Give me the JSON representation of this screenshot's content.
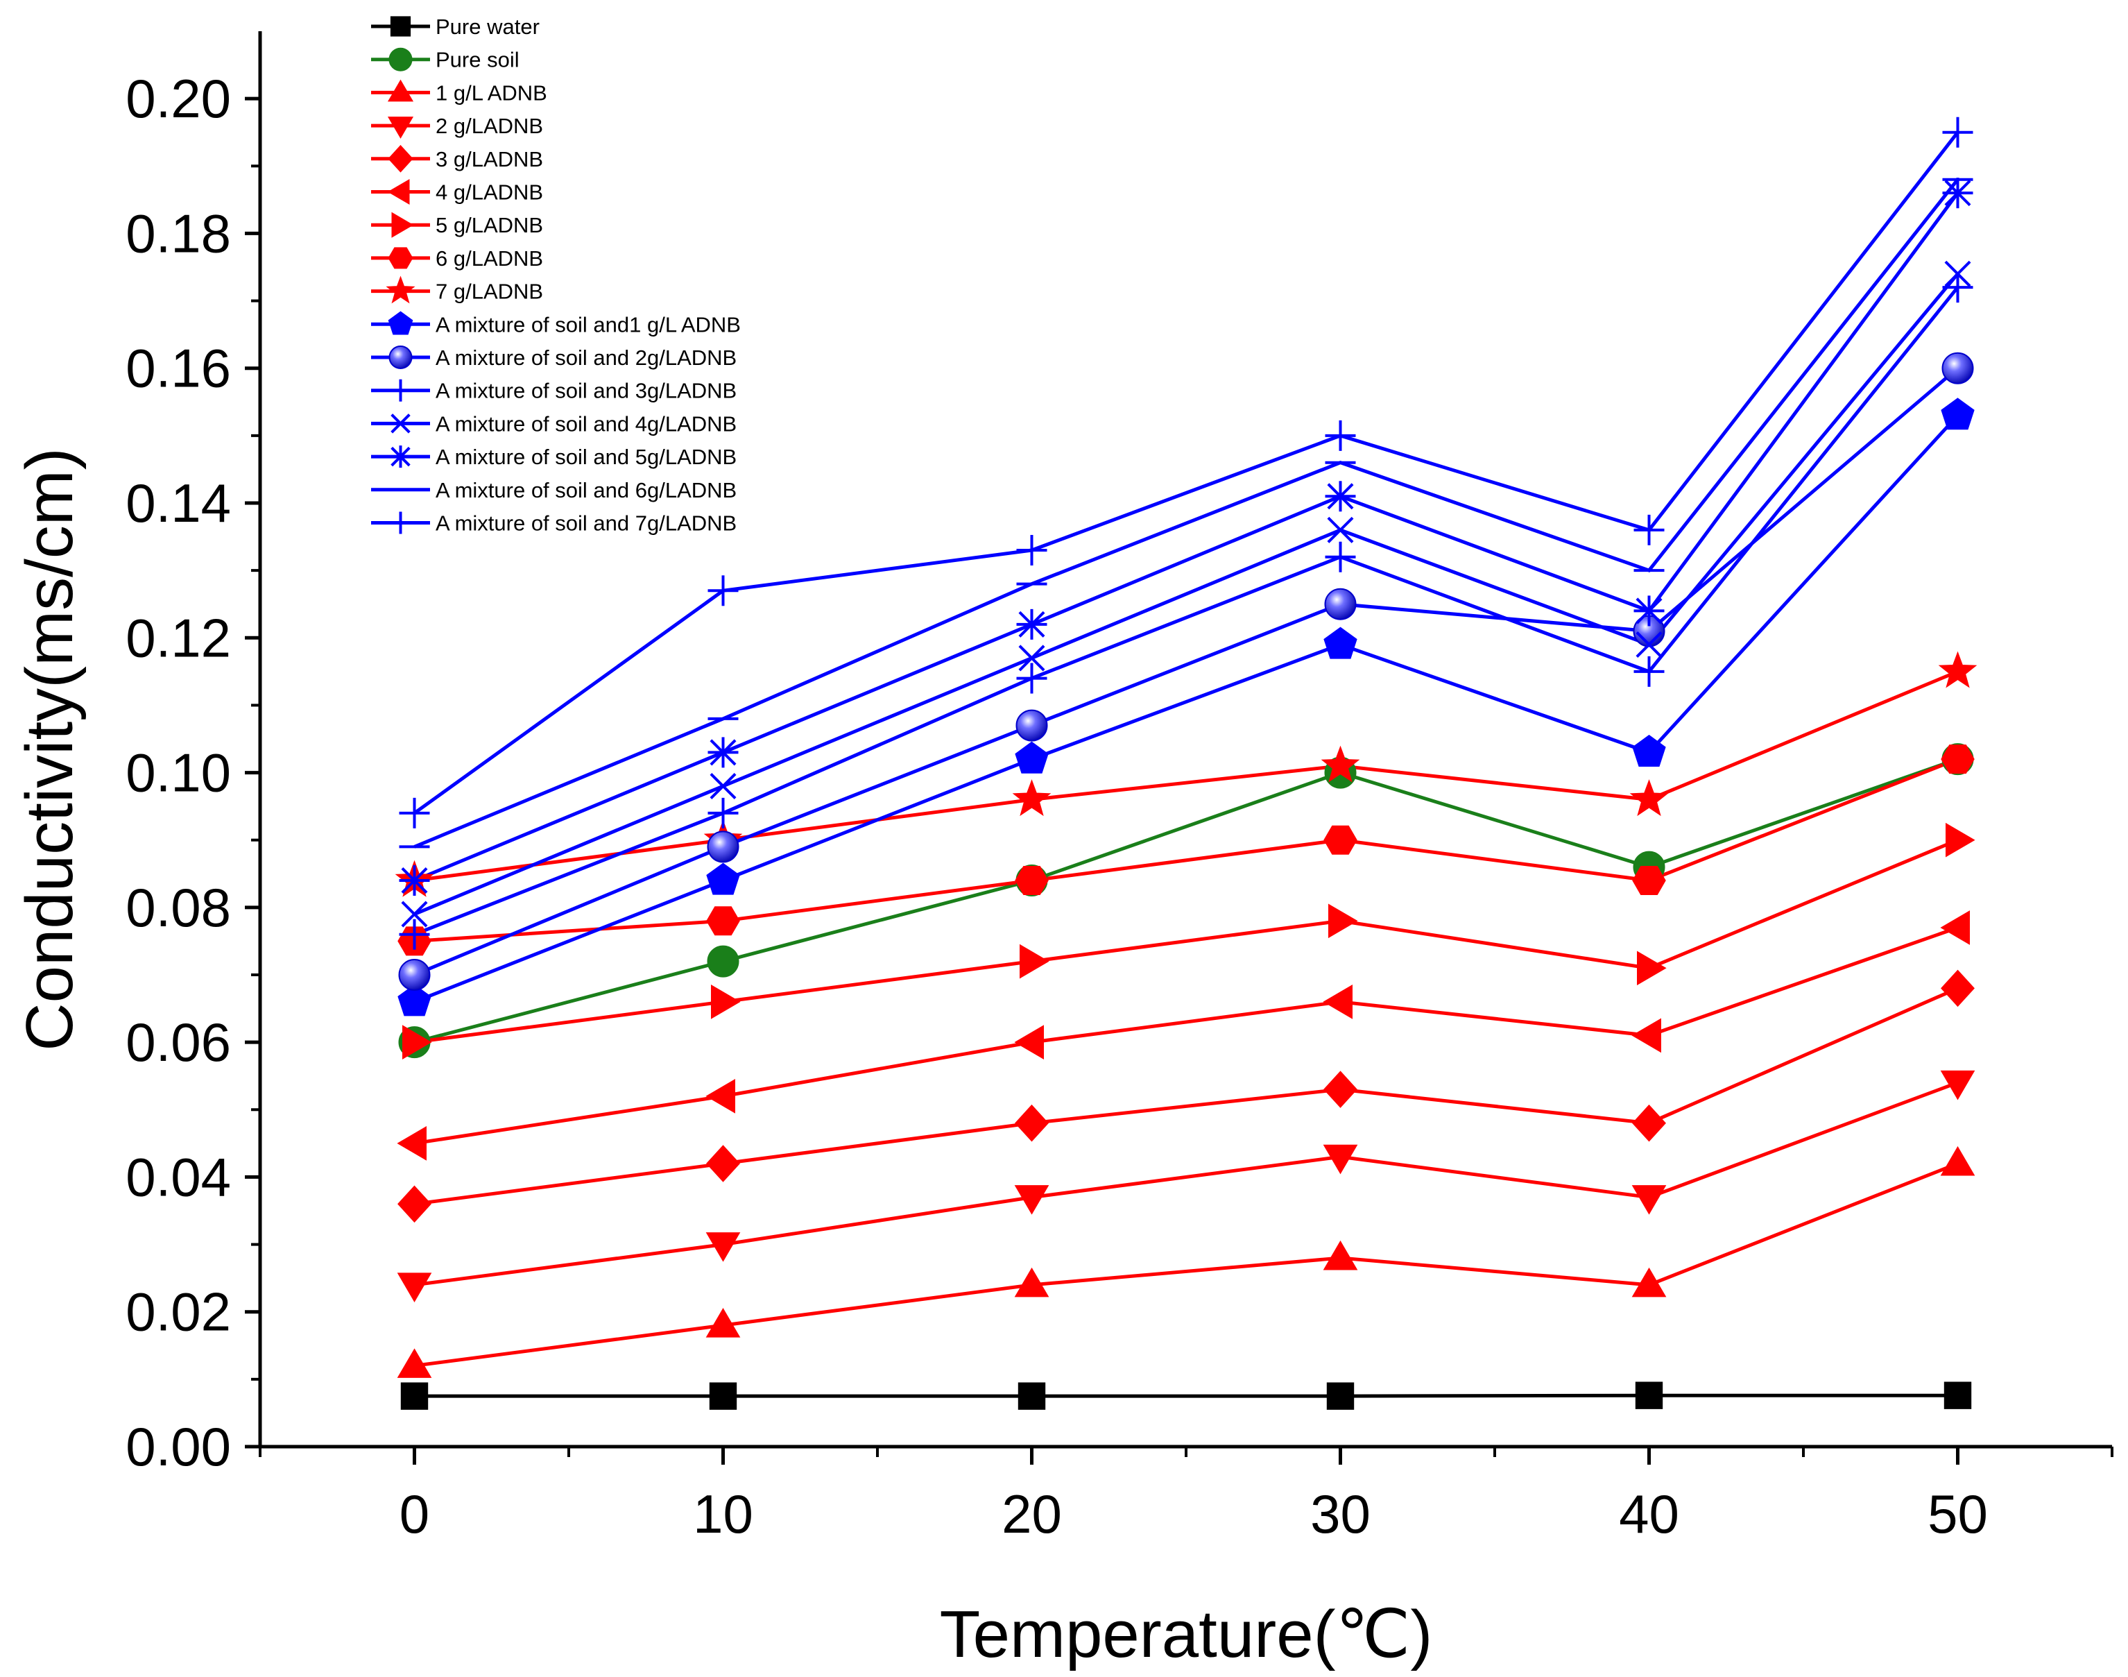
{
  "chart_data": {
    "type": "line",
    "title": "",
    "xlabel": "Temperature(℃)",
    "ylabel": "Conductivity(ms/cm)",
    "xlim": [
      -5,
      55
    ],
    "ylim": [
      0,
      0.21
    ],
    "x": [
      0,
      10,
      20,
      30,
      40,
      50
    ],
    "x_ticks": [
      0,
      10,
      20,
      30,
      40,
      50
    ],
    "x_tick_labels": [
      "0",
      "10",
      "20",
      "30",
      "40",
      "50"
    ],
    "y_ticks": [
      0,
      0.02,
      0.04,
      0.06,
      0.08,
      0.1,
      0.12,
      0.14,
      0.16,
      0.18,
      0.2
    ],
    "y_tick_labels": [
      "0.00",
      "0.02",
      "0.04",
      "0.06",
      "0.08",
      "0.10",
      "0.12",
      "0.14",
      "0.16",
      "0.18",
      "0.20"
    ],
    "grid": false,
    "legend_position": "top-left",
    "series": [
      {
        "name": "Pure water",
        "color": "#000000",
        "marker": "square",
        "values": [
          0.0075,
          0.0075,
          0.0075,
          0.0075,
          0.0076,
          0.0076
        ]
      },
      {
        "name": "Pure soil",
        "color": "#1a7f1a",
        "marker": "circle",
        "values": [
          0.06,
          0.072,
          0.084,
          0.1,
          0.086,
          0.102
        ]
      },
      {
        "name": "1 g/L ADNB",
        "color": "#ff0000",
        "marker": "triangle-up",
        "values": [
          0.012,
          0.018,
          0.024,
          0.028,
          0.024,
          0.042
        ]
      },
      {
        "name": "2 g/LADNB",
        "color": "#ff0000",
        "marker": "triangle-down",
        "values": [
          0.024,
          0.03,
          0.037,
          0.043,
          0.037,
          0.054
        ]
      },
      {
        "name": "3 g/LADNB",
        "color": "#ff0000",
        "marker": "diamond",
        "values": [
          0.036,
          0.042,
          0.048,
          0.053,
          0.048,
          0.068
        ]
      },
      {
        "name": "4 g/LADNB",
        "color": "#ff0000",
        "marker": "triangle-left",
        "values": [
          0.045,
          0.052,
          0.06,
          0.066,
          0.061,
          0.077
        ]
      },
      {
        "name": "5 g/LADNB",
        "color": "#ff0000",
        "marker": "triangle-right",
        "values": [
          0.06,
          0.066,
          0.072,
          0.078,
          0.071,
          0.09
        ]
      },
      {
        "name": "6 g/LADNB",
        "color": "#ff0000",
        "marker": "hexagon",
        "values": [
          0.075,
          0.078,
          0.084,
          0.09,
          0.084,
          0.102
        ]
      },
      {
        "name": "7 g/LADNB",
        "color": "#ff0000",
        "marker": "star",
        "values": [
          0.084,
          0.09,
          0.096,
          0.101,
          0.096,
          0.115
        ]
      },
      {
        "name": "A mixture of soil and1 g/L ADNB",
        "color": "#0000ff",
        "marker": "pentagon",
        "values": [
          0.066,
          0.084,
          0.102,
          0.119,
          0.103,
          0.153
        ]
      },
      {
        "name": "A mixture of soil and 2g/LADNB",
        "color": "#0000ff",
        "marker": "sphere",
        "values": [
          0.07,
          0.089,
          0.107,
          0.125,
          0.121,
          0.16
        ]
      },
      {
        "name": "A mixture of soil and 3g/LADNB",
        "color": "#0000ff",
        "marker": "plus",
        "values": [
          0.076,
          0.094,
          0.114,
          0.132,
          0.115,
          0.172
        ]
      },
      {
        "name": "A mixture of soil and 4g/LADNB",
        "color": "#0000ff",
        "marker": "x",
        "values": [
          0.079,
          0.098,
          0.117,
          0.136,
          0.119,
          0.174
        ]
      },
      {
        "name": "A mixture of soil and 5g/LADNB",
        "color": "#0000ff",
        "marker": "asterisk",
        "values": [
          0.084,
          0.103,
          0.122,
          0.141,
          0.124,
          0.186
        ]
      },
      {
        "name": "A mixture of soil and 6g/LADNB",
        "color": "#0000ff",
        "marker": "dash",
        "values": [
          0.089,
          0.108,
          0.128,
          0.146,
          0.13,
          0.188
        ]
      },
      {
        "name": "A mixture of soil and 7g/LADNB",
        "color": "#0000ff",
        "marker": "plus",
        "values": [
          0.094,
          0.127,
          0.133,
          0.15,
          0.136,
          0.195
        ]
      }
    ]
  }
}
